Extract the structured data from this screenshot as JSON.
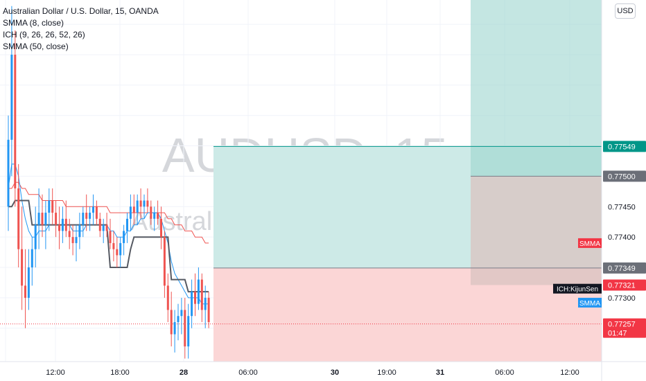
{
  "legend": {
    "symbol_line": "Australian Dollar / U.S. Dollar, 15, OANDA",
    "ind1": "SMMA (8, close)",
    "ind2": "ICH (9, 26, 26, 52, 26)",
    "ind3": "SMMA (50, close)"
  },
  "watermark": {
    "ticker": "AUDUSD, 15",
    "name": "Australian Dollar / U.S. Dollar"
  },
  "currency_button": "USD",
  "colors": {
    "up": "#2196f3",
    "down": "#ef5350",
    "kijun": "#555962",
    "smma_fast": "#2196f3",
    "smma_slow": "#ef5350",
    "profit": "#cdeae7",
    "profit_dark": "#9dd5cf",
    "loss": "#fbd6d6",
    "loss_dark": "#f7b1b1",
    "grey_zone": "#d9c3c0",
    "teal_label": "#009688",
    "grey_label": "#6b6f78",
    "red_label": "#f23645",
    "black_label": "#131722"
  },
  "chart_data": {
    "type": "candlestick",
    "symbol": "AUDUSD",
    "interval": "15",
    "exchange": "OANDA",
    "ylim": [
      0.77195,
      0.7779
    ],
    "x_ticks": [
      "12:00",
      "18:00",
      "28",
      "06:00",
      "30",
      "19:00",
      "31",
      "06:00",
      "12:00"
    ],
    "y_ticks": [
      "0.77450",
      "0.77400",
      "0.77300"
    ],
    "price_labels": [
      {
        "name": "target",
        "value": 0.77549,
        "text": "0.77549"
      },
      {
        "name": "stop-upper",
        "value": 0.775,
        "text": "0.77500"
      },
      {
        "name": "entry",
        "value": 0.77349,
        "text": "0.77349"
      },
      {
        "name": "stop-lower",
        "value": 0.77321,
        "text": "0.77321"
      },
      {
        "name": "last",
        "value": 0.77257,
        "text": "0.77257",
        "countdown": "01:47"
      }
    ],
    "indicator_tags": [
      {
        "name": "smma-slow-tag",
        "text": "SMMA",
        "value": 0.7739
      },
      {
        "name": "kijun-tag",
        "text": "ICH:KijunSen",
        "value": 0.77315
      },
      {
        "name": "smma-fast-tag",
        "text": "SMMA",
        "value": 0.77292
      }
    ],
    "positions": [
      {
        "name": "long-position",
        "entry": 0.77349,
        "target": 0.77549,
        "stop": 0.77195
      },
      {
        "name": "short-position",
        "entry": 0.775,
        "target": 0.7779,
        "stop": 0.77321
      }
    ],
    "candles": [
      [
        0.7745,
        0.776,
        0.7741,
        0.7756
      ],
      [
        0.7756,
        0.7778,
        0.775,
        0.777
      ],
      [
        0.777,
        0.7774,
        0.7745,
        0.7748
      ],
      [
        0.7748,
        0.7752,
        0.7735,
        0.7738
      ],
      [
        0.7738,
        0.7745,
        0.7728,
        0.7732
      ],
      [
        0.7732,
        0.7738,
        0.7725,
        0.773
      ],
      [
        0.773,
        0.7738,
        0.7728,
        0.7735
      ],
      [
        0.7735,
        0.774,
        0.7732,
        0.7738
      ],
      [
        0.7738,
        0.7745,
        0.7735,
        0.7742
      ],
      [
        0.7742,
        0.7748,
        0.7738,
        0.7744
      ],
      [
        0.7744,
        0.7747,
        0.774,
        0.7742
      ],
      [
        0.7742,
        0.7746,
        0.7738,
        0.7744
      ],
      [
        0.7744,
        0.7748,
        0.7741,
        0.7746
      ],
      [
        0.7746,
        0.7748,
        0.7742,
        0.7744
      ],
      [
        0.7744,
        0.7746,
        0.774,
        0.7742
      ],
      [
        0.7742,
        0.7745,
        0.7738,
        0.7741
      ],
      [
        0.7741,
        0.7745,
        0.7739,
        0.7743
      ],
      [
        0.7743,
        0.7746,
        0.774,
        0.7741
      ],
      [
        0.7741,
        0.7743,
        0.7738,
        0.774
      ],
      [
        0.774,
        0.7742,
        0.7737,
        0.7739
      ],
      [
        0.7739,
        0.7742,
        0.7736,
        0.774
      ],
      [
        0.774,
        0.7744,
        0.7738,
        0.7742
      ],
      [
        0.7742,
        0.7745,
        0.774,
        0.7744
      ],
      [
        0.7744,
        0.7747,
        0.7741,
        0.7743
      ],
      [
        0.7743,
        0.7745,
        0.7741,
        0.7744
      ],
      [
        0.7744,
        0.7747,
        0.7742,
        0.7745
      ],
      [
        0.7745,
        0.7746,
        0.7742,
        0.7743
      ],
      [
        0.7743,
        0.7744,
        0.774,
        0.7741
      ],
      [
        0.7741,
        0.7743,
        0.7739,
        0.7742
      ],
      [
        0.7742,
        0.7744,
        0.774,
        0.7741
      ],
      [
        0.7741,
        0.7743,
        0.7738,
        0.7739
      ],
      [
        0.7739,
        0.7741,
        0.7736,
        0.7738
      ],
      [
        0.7738,
        0.774,
        0.7735,
        0.7737
      ],
      [
        0.7737,
        0.774,
        0.7735,
        0.7739
      ],
      [
        0.7739,
        0.7742,
        0.7737,
        0.7741
      ],
      [
        0.7741,
        0.7744,
        0.7739,
        0.7743
      ],
      [
        0.7743,
        0.7747,
        0.7741,
        0.7745
      ],
      [
        0.7745,
        0.7747,
        0.7742,
        0.7744
      ],
      [
        0.7744,
        0.7747,
        0.7742,
        0.7746
      ],
      [
        0.7746,
        0.7748,
        0.7743,
        0.7745
      ],
      [
        0.7745,
        0.7747,
        0.7743,
        0.7746
      ],
      [
        0.7746,
        0.7748,
        0.7744,
        0.7745
      ],
      [
        0.7745,
        0.7746,
        0.7742,
        0.7743
      ],
      [
        0.7743,
        0.7745,
        0.7741,
        0.7744
      ],
      [
        0.7744,
        0.7746,
        0.7742,
        0.7743
      ],
      [
        0.7743,
        0.7745,
        0.7738,
        0.774
      ],
      [
        0.774,
        0.7741,
        0.773,
        0.7732
      ],
      [
        0.7732,
        0.7734,
        0.7726,
        0.7728
      ],
      [
        0.7728,
        0.7731,
        0.7722,
        0.7724
      ],
      [
        0.7724,
        0.7728,
        0.7721,
        0.7726
      ],
      [
        0.7726,
        0.7729,
        0.7723,
        0.7727
      ],
      [
        0.7727,
        0.773,
        0.7724,
        0.7728
      ],
      [
        0.7728,
        0.773,
        0.772,
        0.7722
      ],
      [
        0.7722,
        0.7729,
        0.772,
        0.7727
      ],
      [
        0.7727,
        0.7733,
        0.7725,
        0.7731
      ],
      [
        0.7731,
        0.7734,
        0.7727,
        0.7729
      ],
      [
        0.7729,
        0.7735,
        0.7728,
        0.7733
      ],
      [
        0.7733,
        0.7734,
        0.7726,
        0.7728
      ],
      [
        0.7728,
        0.7732,
        0.7725,
        0.773
      ],
      [
        0.773,
        0.7731,
        0.7725,
        0.7726
      ]
    ],
    "smma_fast": [
      0.7748,
      0.7752,
      0.7752,
      0.775,
      0.7746,
      0.7743,
      0.7741,
      0.774,
      0.774,
      0.7741,
      0.7741,
      0.7741,
      0.7742,
      0.7742,
      0.7742,
      0.7742,
      0.7742,
      0.7742,
      0.7742,
      0.7741,
      0.7741,
      0.7741,
      0.7741,
      0.7742,
      0.7742,
      0.7742,
      0.7742,
      0.7742,
      0.7742,
      0.7742,
      0.7741,
      0.7741,
      0.774,
      0.774,
      0.774,
      0.7741,
      0.7741,
      0.7742,
      0.7742,
      0.7743,
      0.7743,
      0.7744,
      0.7744,
      0.7744,
      0.7744,
      0.7743,
      0.7741,
      0.7739,
      0.7736,
      0.7734,
      0.7733,
      0.7732,
      0.7731,
      0.773,
      0.773,
      0.773,
      0.773,
      0.7729,
      0.7729,
      0.7729
    ],
    "smma_slow": [
      0.7748,
      0.7748,
      0.7749,
      0.7749,
      0.7748,
      0.7748,
      0.7747,
      0.7747,
      0.7747,
      0.7747,
      0.7746,
      0.7746,
      0.7746,
      0.7746,
      0.7746,
      0.7746,
      0.7746,
      0.7745,
      0.7745,
      0.7745,
      0.7745,
      0.7745,
      0.7745,
      0.7745,
      0.7745,
      0.7745,
      0.7745,
      0.7745,
      0.7745,
      0.7745,
      0.7744,
      0.7744,
      0.7744,
      0.7744,
      0.7744,
      0.7744,
      0.7744,
      0.7744,
      0.7744,
      0.7744,
      0.7744,
      0.7744,
      0.7744,
      0.7744,
      0.7744,
      0.7744,
      0.7744,
      0.7743,
      0.7743,
      0.7742,
      0.7742,
      0.7742,
      0.7741,
      0.7741,
      0.7741,
      0.774,
      0.774,
      0.774,
      0.7739,
      0.7739
    ],
    "kijun": [
      0.7745,
      0.7745,
      0.7746,
      0.7746,
      0.7746,
      0.7746,
      0.7746,
      0.7742,
      0.7742,
      0.7742,
      0.7742,
      0.7742,
      0.7742,
      0.7742,
      0.7742,
      0.7742,
      0.7742,
      0.7742,
      0.7742,
      0.7742,
      0.7742,
      0.7742,
      0.7742,
      0.7742,
      0.7742,
      0.7742,
      0.7742,
      0.7742,
      0.7742,
      0.7742,
      0.7735,
      0.7735,
      0.7735,
      0.7735,
      0.7735,
      0.7735,
      0.7738,
      0.774,
      0.774,
      0.774,
      0.774,
      0.774,
      0.774,
      0.774,
      0.774,
      0.774,
      0.774,
      0.774,
      0.7733,
      0.7733,
      0.7733,
      0.7733,
      0.7733,
      0.7731,
      0.7731,
      0.7731,
      0.7731,
      0.7731,
      0.7731,
      0.7731
    ]
  }
}
